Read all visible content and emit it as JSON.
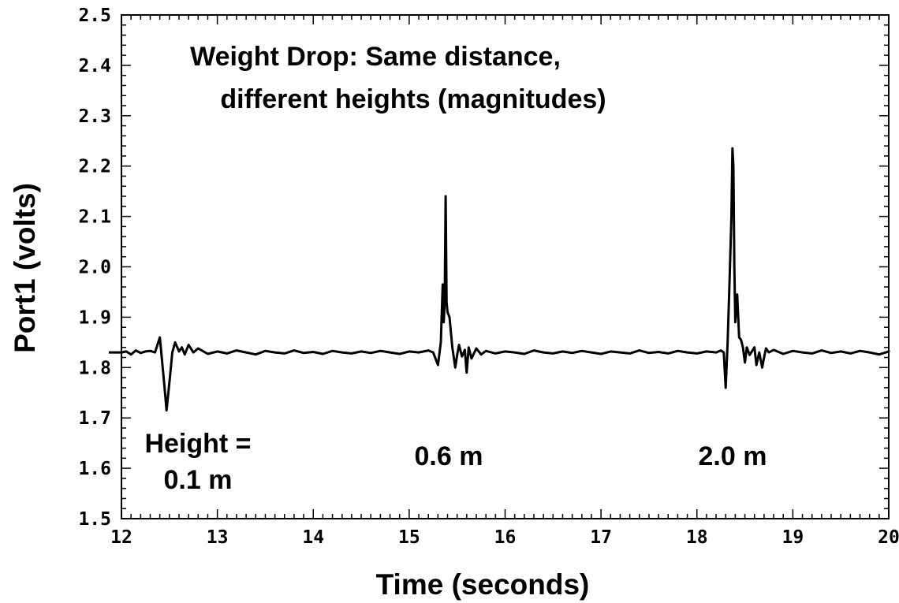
{
  "chart_data": {
    "type": "line",
    "title": "",
    "xlabel": "Time (seconds)",
    "ylabel": "Port1 (volts)",
    "xlim": [
      12,
      20
    ],
    "ylim": [
      1.5,
      2.5
    ],
    "x_ticks": [
      "12",
      "13",
      "14",
      "15",
      "16",
      "17",
      "18",
      "19",
      "20"
    ],
    "y_ticks": [
      "1.5",
      "1.6",
      "1.7",
      "1.8",
      "1.9",
      "2.0",
      "2.1",
      "2.2",
      "2.3",
      "2.4",
      "2.5"
    ],
    "grid": false,
    "annotations": {
      "title_line1": "Weight Drop: Same distance,",
      "title_line2": "different heights (magnitudes)",
      "label_a_line1": "Height =",
      "label_a_line2": "0.1 m",
      "label_b": "0.6 m",
      "label_c": "2.0 m"
    },
    "series": [
      {
        "x": [
          11.85,
          12.0,
          12.05,
          12.1,
          12.15,
          12.2,
          12.25,
          12.3,
          12.35,
          12.4,
          12.42,
          12.45,
          12.47,
          12.5,
          12.53,
          12.56,
          12.6,
          12.63,
          12.66,
          12.7,
          12.75,
          12.8,
          12.9,
          13.0,
          13.1,
          13.2,
          13.3,
          13.4,
          13.5,
          13.6,
          13.7,
          13.8,
          13.9,
          14.0,
          14.1,
          14.2,
          14.3,
          14.4,
          14.5,
          14.6,
          14.7,
          14.8,
          14.9,
          15.0,
          15.1,
          15.2,
          15.25,
          15.3,
          15.33,
          15.35,
          15.36,
          15.37,
          15.38,
          15.39,
          15.4,
          15.42,
          15.45,
          15.48,
          15.5,
          15.52,
          15.55,
          15.58,
          15.6,
          15.62,
          15.65,
          15.7,
          15.75,
          15.8,
          15.9,
          16.0,
          16.1,
          16.2,
          16.3,
          16.4,
          16.5,
          16.6,
          16.7,
          16.8,
          16.9,
          17.0,
          17.1,
          17.2,
          17.3,
          17.4,
          17.5,
          17.6,
          17.7,
          17.8,
          17.9,
          18.0,
          18.1,
          18.2,
          18.25,
          18.28,
          18.3,
          18.32,
          18.34,
          18.36,
          18.37,
          18.38,
          18.39,
          18.4,
          18.42,
          18.44,
          18.46,
          18.48,
          18.5,
          18.52,
          18.55,
          18.6,
          18.62,
          18.65,
          18.68,
          18.7,
          18.72,
          18.75,
          18.8,
          18.9,
          19.0,
          19.1,
          19.2,
          19.3,
          19.4,
          19.5,
          19.6,
          19.7,
          19.8,
          19.9,
          20.0,
          20.05
        ],
        "y": [
          1.83,
          1.83,
          1.832,
          1.826,
          1.834,
          1.829,
          1.832,
          1.833,
          1.83,
          1.86,
          1.82,
          1.76,
          1.715,
          1.77,
          1.83,
          1.85,
          1.832,
          1.84,
          1.826,
          1.845,
          1.83,
          1.838,
          1.827,
          1.832,
          1.828,
          1.834,
          1.83,
          1.826,
          1.833,
          1.83,
          1.828,
          1.834,
          1.829,
          1.831,
          1.827,
          1.833,
          1.83,
          1.828,
          1.832,
          1.829,
          1.833,
          1.83,
          1.827,
          1.832,
          1.83,
          1.834,
          1.83,
          1.805,
          1.85,
          1.965,
          1.89,
          1.93,
          2.14,
          1.93,
          1.91,
          1.9,
          1.84,
          1.8,
          1.825,
          1.845,
          1.822,
          1.835,
          1.79,
          1.84,
          1.818,
          1.838,
          1.826,
          1.833,
          1.828,
          1.832,
          1.83,
          1.827,
          1.834,
          1.83,
          1.828,
          1.832,
          1.829,
          1.833,
          1.83,
          1.827,
          1.832,
          1.83,
          1.828,
          1.834,
          1.829,
          1.831,
          1.828,
          1.833,
          1.83,
          1.828,
          1.832,
          1.83,
          1.834,
          1.83,
          1.76,
          1.85,
          1.97,
          2.1,
          2.235,
          2.2,
          2.0,
          1.89,
          1.945,
          1.86,
          1.855,
          1.84,
          1.81,
          1.84,
          1.825,
          1.84,
          1.805,
          1.83,
          1.8,
          1.82,
          1.838,
          1.83,
          1.835,
          1.827,
          1.833,
          1.83,
          1.828,
          1.834,
          1.829,
          1.832,
          1.828,
          1.833,
          1.83,
          1.826,
          1.832,
          1.834
        ]
      }
    ]
  }
}
